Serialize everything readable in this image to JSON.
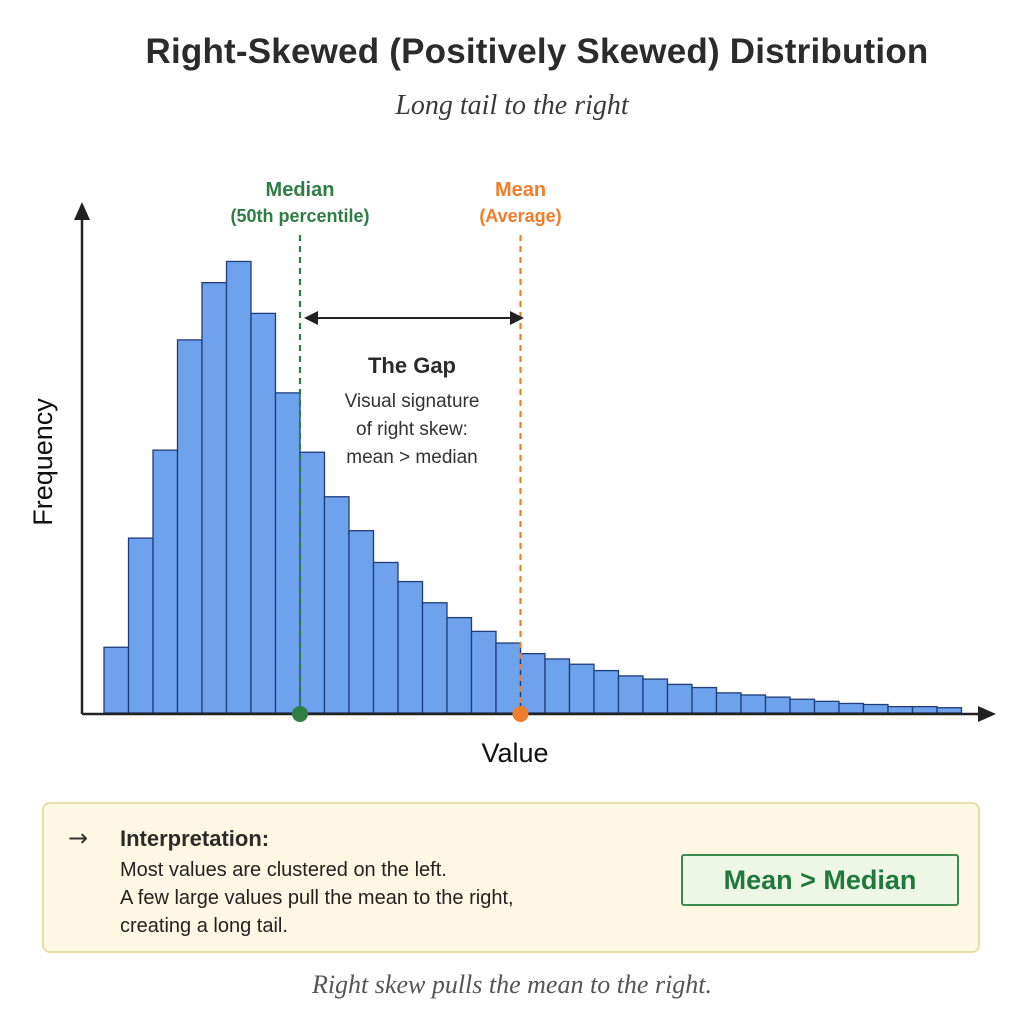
{
  "header": {
    "title": "Right-Skewed (Positively Skewed) Distribution",
    "subtitle": "Long tail to the right"
  },
  "chart_data": {
    "type": "bar",
    "xlabel": "Value",
    "ylabel": "Frequency",
    "bar_color": "#6fa2ec",
    "bar_border_color": "#1f3d7a",
    "values": [
      62,
      165,
      248,
      352,
      406,
      426,
      377,
      302,
      246,
      204,
      172,
      142,
      124,
      104,
      90,
      77,
      66,
      56,
      51,
      46,
      40,
      35,
      32,
      27,
      24,
      19,
      17,
      15,
      13,
      11,
      9,
      8,
      6,
      6,
      5
    ],
    "ylim": [
      0,
      500
    ],
    "grid": false,
    "markers": [
      {
        "label": "Median",
        "sublabel": "(50th percentile)",
        "x": 8,
        "color": "#2e7d45"
      },
      {
        "label": "Mean",
        "sublabel": "(Average)",
        "x": 17,
        "color": "#ef7d2c"
      }
    ],
    "gap": {
      "title": "The Gap",
      "lines": [
        "Visual signature",
        "of right skew:",
        "mean > median"
      ]
    }
  },
  "panel": {
    "arrow_icon": "→",
    "heading": "Interpretation:",
    "lines": [
      "Most values are clustered on the left.",
      "A few large values pull the mean to the right,",
      "creating a long tail."
    ],
    "badge": "Mean > Median",
    "badge_color": "#1f7a3a"
  },
  "caption": "Right skew pulls the mean to the right."
}
